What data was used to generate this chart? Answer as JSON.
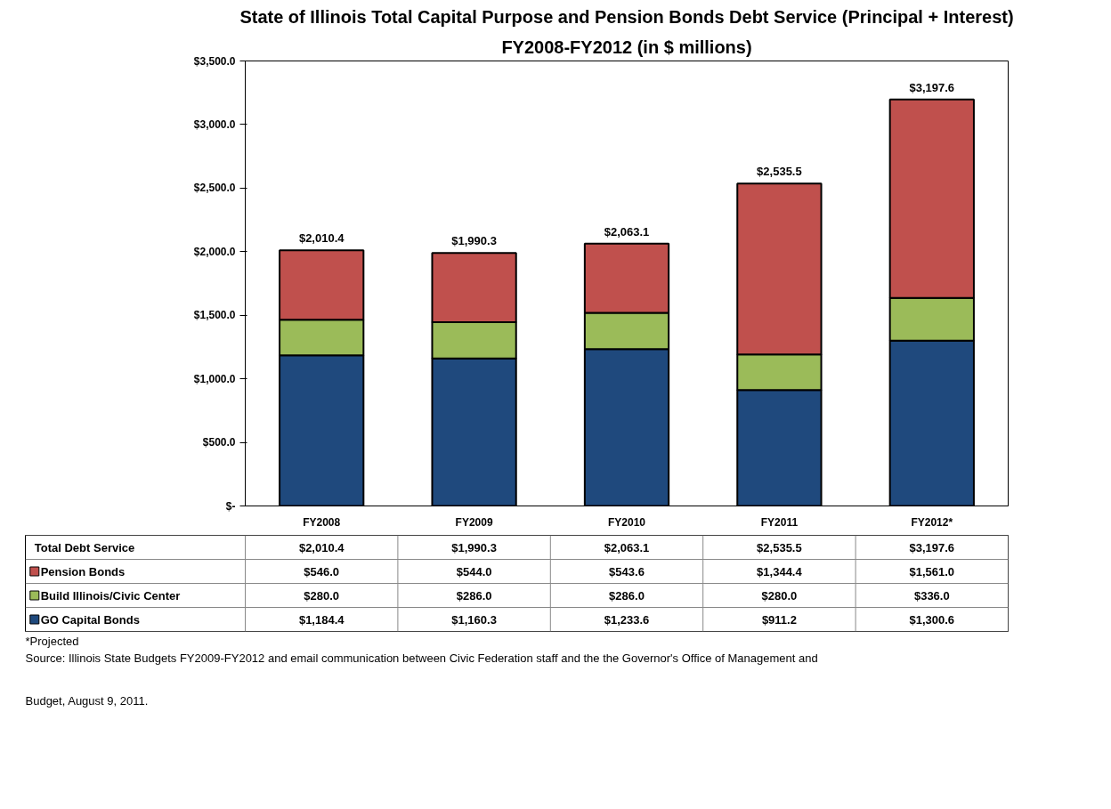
{
  "chart_data": {
    "type": "bar",
    "stacked": true,
    "title": "State of Illinois Total Capital Purpose and Pension Bonds Debt Service (Principal + Interest)",
    "subtitle": "FY2008-FY2012 (in $ millions)",
    "categories": [
      "FY2008",
      "FY2009",
      "FY2010",
      "FY2011",
      "FY2012*"
    ],
    "series": [
      {
        "name": "GO Capital  Bonds",
        "color": "#1f497d",
        "values": [
          1184.4,
          1160.3,
          1233.6,
          911.2,
          1300.6
        ],
        "value_labels": [
          "$1,184.4",
          "$1,160.3",
          "$1,233.6",
          "$911.2",
          "$1,300.6"
        ]
      },
      {
        "name": "Build Illinois/Civic Center",
        "color": "#9bbb59",
        "values": [
          280.0,
          286.0,
          286.0,
          280.0,
          336.0
        ],
        "value_labels": [
          "$280.0",
          "$286.0",
          "$286.0",
          "$280.0",
          "$336.0"
        ]
      },
      {
        "name": "Pension Bonds",
        "color": "#c0504d",
        "values": [
          546.0,
          544.0,
          543.6,
          1344.4,
          1561.0
        ],
        "value_labels": [
          "$546.0",
          "$544.0",
          "$543.6",
          "$1,344.4",
          "$1,561.0"
        ]
      }
    ],
    "totals": [
      "$2,010.4",
      "$1,990.3",
      "$2,063.1",
      "$2,535.5",
      "$3,197.6"
    ],
    "ylim": [
      0,
      3500
    ],
    "yticks": [
      {
        "value": 0,
        "label": "$-"
      },
      {
        "value": 500,
        "label": "$500.0"
      },
      {
        "value": 1000,
        "label": "$1,000.0"
      },
      {
        "value": 1500,
        "label": "$1,500.0"
      },
      {
        "value": 2000,
        "label": "$2,000.0"
      },
      {
        "value": 2500,
        "label": "$2,500.0"
      },
      {
        "value": 3000,
        "label": "$3,000.0"
      },
      {
        "value": 3500,
        "label": "$3,500.0"
      }
    ],
    "grid": false,
    "legend": "bottom",
    "annotations": [
      "Total Debt Service",
      "*Projected",
      "Source: Illinois State Budgets FY2009-FY2012 and email communication between Civic Federation staff and the the Governor's Office of Management and",
      "Budget, August  9, 2011."
    ]
  }
}
